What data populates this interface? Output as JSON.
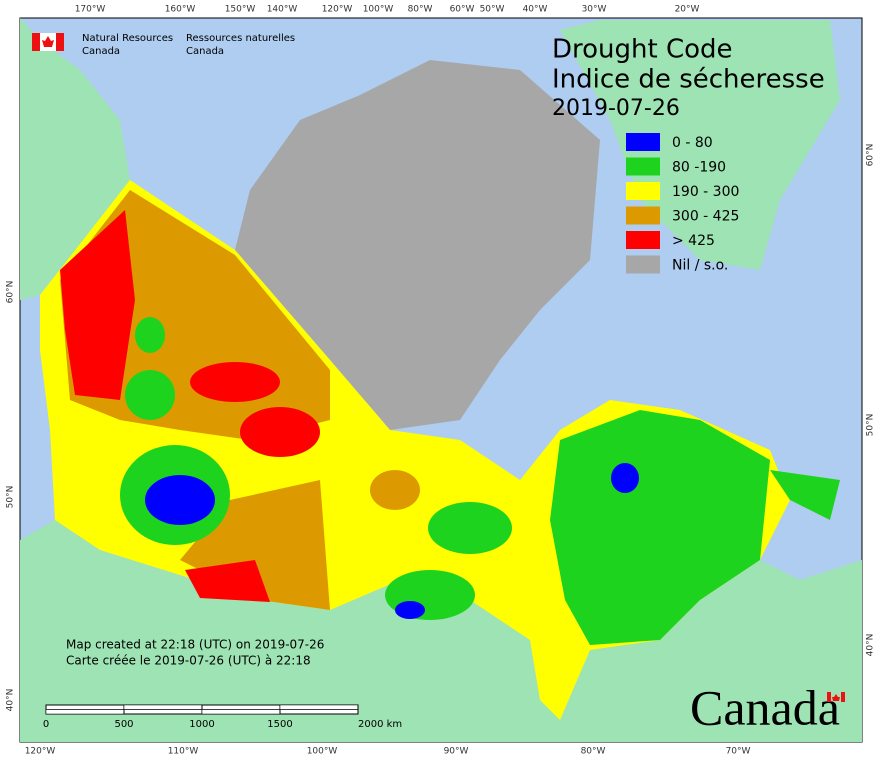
{
  "header": {
    "agency_en": [
      "Natural Resources",
      "Canada"
    ],
    "agency_fr": [
      "Ressources naturelles",
      "Canada"
    ],
    "title": [
      "Drought Code",
      "Indice de sécheresse"
    ],
    "date": "2019-07-26"
  },
  "legend": {
    "items": [
      {
        "label": "0 - 80",
        "color": "#0000ff"
      },
      {
        "label": "80 -190",
        "color": "#1ed31e"
      },
      {
        "label": "190 - 300",
        "color": "#ffff00"
      },
      {
        "label": "300 - 425",
        "color": "#dc9a00"
      },
      {
        "label": "> 425",
        "color": "#ff0000"
      },
      {
        "label": "Nil / s.o.",
        "color": "#a7a7a7"
      }
    ]
  },
  "graticule": {
    "top": [
      "170°W",
      "160°W",
      "150°W",
      "140°W",
      "120°W",
      "100°W",
      "80°W",
      "60°W",
      "50°W",
      "40°W",
      "30°W",
      "20°W"
    ],
    "bottom": [
      "120°W",
      "110°W",
      "100°W",
      "90°W",
      "80°W",
      "70°W"
    ],
    "left": [
      "60°N",
      "50°N",
      "40°N"
    ],
    "right": [
      "60°N",
      "50°N",
      "40°N"
    ]
  },
  "credits": [
    "Map created at 22:18 (UTC) on 2019-07-26",
    "Carte créée le 2019-07-26 (UTC) à 22:18"
  ],
  "scale_bar": {
    "labels": [
      "0",
      "500",
      "1000",
      "1500",
      "2000 km"
    ]
  },
  "wordmark": "Canada"
}
